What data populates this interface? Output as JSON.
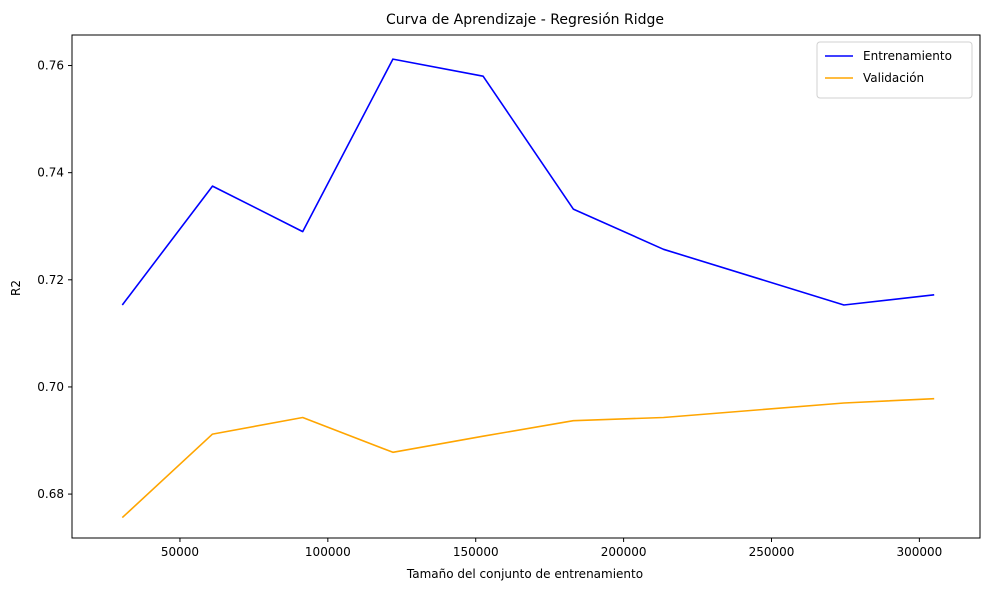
{
  "chart_data": {
    "type": "line",
    "title": "Curva de Aprendizaje - Regresión Ridge",
    "xlabel": "Tamaño del conjunto de entrenamiento",
    "ylabel": "R2",
    "xlim": [
      13500,
      320500
    ],
    "ylim": [
      0.6718,
      0.7657
    ],
    "xticks": [
      50000,
      100000,
      150000,
      200000,
      250000,
      300000
    ],
    "yticks": [
      0.68,
      0.7,
      0.72,
      0.74,
      0.76
    ],
    "grid": false,
    "legend_position": "top-right",
    "x": [
      30500,
      61000,
      91500,
      122000,
      152500,
      183000,
      213500,
      274500,
      305000
    ],
    "series": [
      {
        "name": "Entrenamiento",
        "color": "#0000ff",
        "values": [
          0.7153,
          0.7375,
          0.729,
          0.7612,
          0.758,
          0.7332,
          0.7257,
          0.7153,
          0.7172
        ]
      },
      {
        "name": "Validación",
        "color": "#ffa500",
        "values": [
          0.6756,
          0.6912,
          0.6943,
          0.6878,
          0.6908,
          0.6937,
          0.6943,
          0.697,
          0.6978
        ]
      }
    ]
  }
}
